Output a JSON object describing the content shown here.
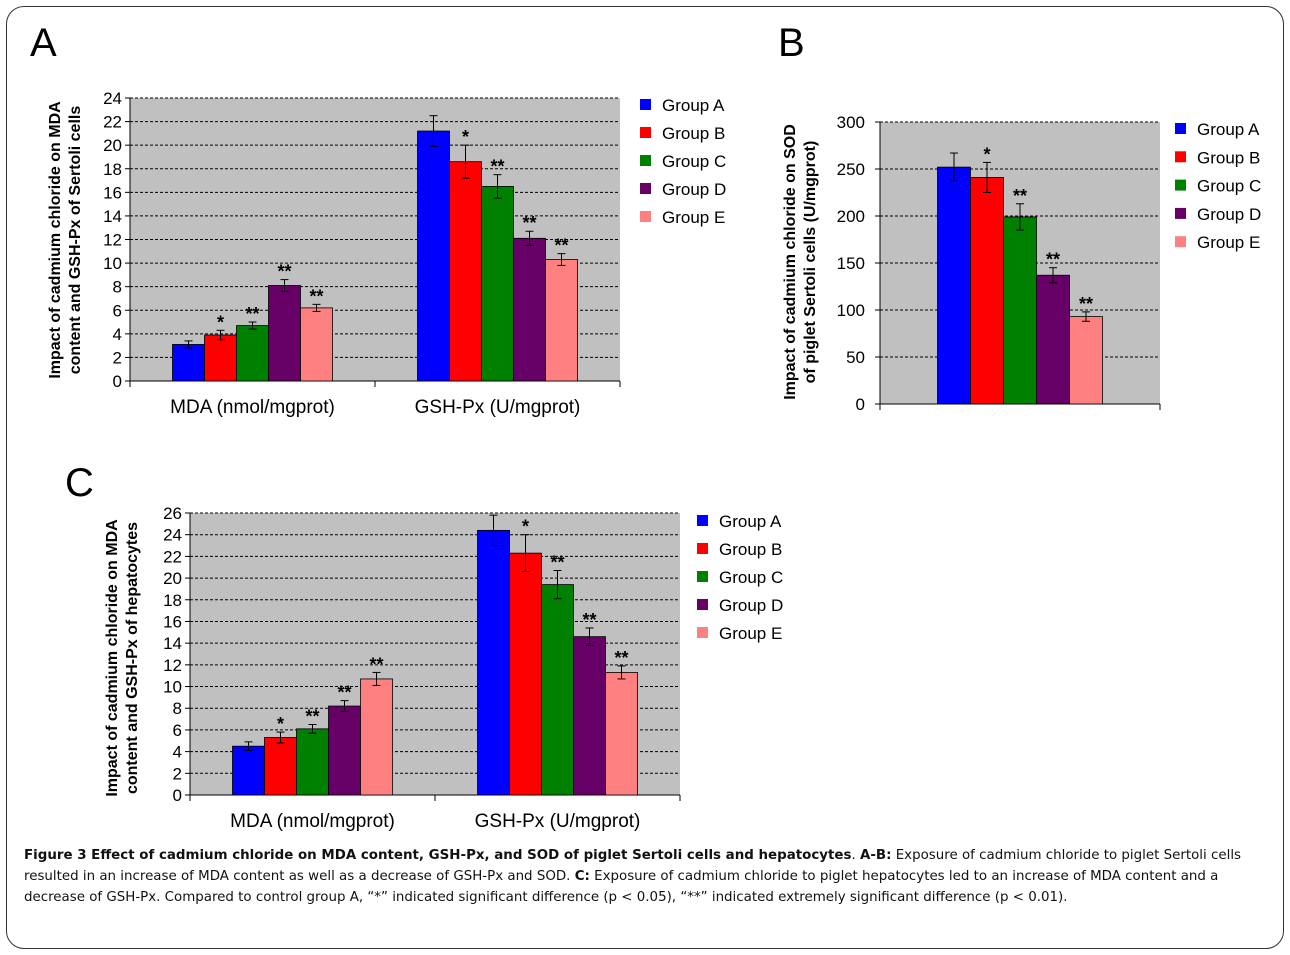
{
  "legend_labels": [
    "Group A",
    "Group B",
    "Group C",
    "Group D",
    "Group E"
  ],
  "colors": {
    "Group A": "#0000ff",
    "Group B": "#ff0000",
    "Group C": "#008000",
    "Group D": "#660066",
    "Group E": "#ff8080",
    "plot_bg": "#c0c0c0"
  },
  "chart_data": [
    {
      "panel": "A",
      "type": "bar",
      "ylabel_line1": "Impact of cadmium chloride on MDA",
      "ylabel_line2": "content and GSH-Px of Sertoli cells",
      "categories": [
        "MDA (nmol/mgprot)",
        "GSH-Px (U/mgprot)"
      ],
      "ylim": [
        0,
        24
      ],
      "yticks": [
        0,
        2,
        4,
        6,
        8,
        10,
        12,
        14,
        16,
        18,
        20,
        22,
        24
      ],
      "grid": true,
      "legend_position": "right",
      "series": [
        {
          "name": "Group A",
          "values": [
            3.1,
            21.2
          ],
          "errors": [
            0.3,
            1.3
          ],
          "sig": [
            "",
            ""
          ]
        },
        {
          "name": "Group B",
          "values": [
            3.9,
            18.6
          ],
          "errors": [
            0.4,
            1.4
          ],
          "sig": [
            "*",
            "*"
          ]
        },
        {
          "name": "Group C",
          "values": [
            4.7,
            16.5
          ],
          "errors": [
            0.3,
            1.0
          ],
          "sig": [
            "**",
            "**"
          ]
        },
        {
          "name": "Group D",
          "values": [
            8.1,
            12.1
          ],
          "errors": [
            0.5,
            0.6
          ],
          "sig": [
            "**",
            "**"
          ]
        },
        {
          "name": "Group E",
          "values": [
            6.2,
            10.3
          ],
          "errors": [
            0.3,
            0.5
          ],
          "sig": [
            "**",
            "**"
          ]
        }
      ]
    },
    {
      "panel": "B",
      "type": "bar",
      "ylabel_line1": "Impact of cadmium chloride on SOD",
      "ylabel_line2": "of piglet Sertoli cells (U/mgprot)",
      "categories": [
        ""
      ],
      "ylim": [
        0,
        300
      ],
      "yticks": [
        0,
        50,
        100,
        150,
        200,
        250,
        300
      ],
      "grid": true,
      "legend_position": "right",
      "series": [
        {
          "name": "Group A",
          "values": [
            252
          ],
          "errors": [
            15
          ],
          "sig": [
            ""
          ]
        },
        {
          "name": "Group B",
          "values": [
            241
          ],
          "errors": [
            16
          ],
          "sig": [
            "*"
          ]
        },
        {
          "name": "Group C",
          "values": [
            199
          ],
          "errors": [
            14
          ],
          "sig": [
            "**"
          ]
        },
        {
          "name": "Group D",
          "values": [
            137
          ],
          "errors": [
            8
          ],
          "sig": [
            "**"
          ]
        },
        {
          "name": "Group E",
          "values": [
            93
          ],
          "errors": [
            5
          ],
          "sig": [
            "**"
          ]
        }
      ]
    },
    {
      "panel": "C",
      "type": "bar",
      "ylabel_line1": "Impact of cadmium chloride on MDA",
      "ylabel_line2": "content and GSH-Px of hepatocytes",
      "categories": [
        "MDA (nmol/mgprot)",
        "GSH-Px (U/mgprot)"
      ],
      "ylim": [
        0,
        26
      ],
      "yticks": [
        0,
        2,
        4,
        6,
        8,
        10,
        12,
        14,
        16,
        18,
        20,
        22,
        24,
        26
      ],
      "grid": true,
      "legend_position": "right",
      "series": [
        {
          "name": "Group A",
          "values": [
            4.5,
            24.4
          ],
          "errors": [
            0.4,
            1.4
          ],
          "sig": [
            "",
            ""
          ]
        },
        {
          "name": "Group B",
          "values": [
            5.3,
            22.3
          ],
          "errors": [
            0.5,
            1.7
          ],
          "sig": [
            "*",
            "*"
          ]
        },
        {
          "name": "Group C",
          "values": [
            6.1,
            19.4
          ],
          "errors": [
            0.4,
            1.3
          ],
          "sig": [
            "**",
            "**"
          ]
        },
        {
          "name": "Group D",
          "values": [
            8.2,
            14.6
          ],
          "errors": [
            0.5,
            0.8
          ],
          "sig": [
            "**",
            "**"
          ]
        },
        {
          "name": "Group E",
          "values": [
            10.7,
            11.3
          ],
          "errors": [
            0.6,
            0.6
          ],
          "sig": [
            "**",
            "**"
          ]
        }
      ]
    }
  ],
  "caption": {
    "title": "Figure 3 Effect of cadmium chloride on MDA content, GSH-Px, and SOD of piglet Sertoli cells and hepatocytes",
    "period": ". ",
    "ab_label": "A-B:",
    "ab_text": " Exposure of cadmium chloride to piglet Sertoli cells resulted in an increase of MDA content as well as a decrease of GSH-Px and SOD. ",
    "c_label": "C:",
    "c_text": " Exposure of cadmium chloride to piglet hepatocytes led to an increase of MDA content and a decrease of GSH-Px. Compared to control group A, “*” indicated significant difference (p < 0.05), “**” indicated extremely significant difference (p < 0.01)."
  }
}
